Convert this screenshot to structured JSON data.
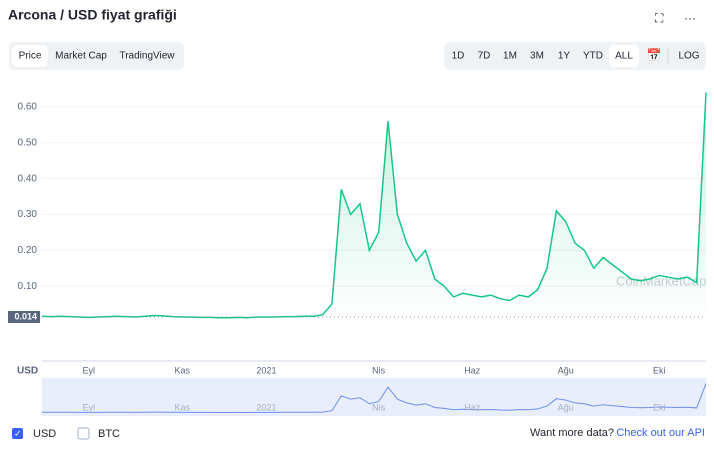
{
  "ui": {
    "title": "Arcona / USD fiyat grafiği",
    "tabs": [
      "Price",
      "Market Cap",
      "TradingView"
    ],
    "ranges": [
      "1D",
      "7D",
      "1M",
      "3M",
      "1Y",
      "YTD",
      "ALL"
    ],
    "log": "LOG",
    "axis_currency": "USD",
    "watermark": "CoinMarketCap",
    "checkboxes": [
      "USD",
      "BTC"
    ],
    "footer_text": "Want more data?",
    "footer_link": "Check out our API"
  },
  "chart_data": {
    "type": "line",
    "color": "#16c784",
    "categories": [
      null,
      null,
      null,
      null,
      null,
      "Eyl",
      null,
      null,
      null,
      null,
      null,
      null,
      null,
      null,
      null,
      "Kas",
      null,
      null,
      null,
      null,
      null,
      null,
      null,
      null,
      "2021",
      null,
      null,
      null,
      null,
      null,
      null,
      null,
      null,
      null,
      null,
      null,
      "Nis",
      null,
      null,
      null,
      null,
      null,
      null,
      null,
      null,
      null,
      "Haz",
      null,
      null,
      null,
      null,
      null,
      null,
      null,
      null,
      null,
      "Ağu",
      null,
      null,
      null,
      null,
      null,
      null,
      null,
      null,
      null,
      "Eki",
      null,
      null,
      null,
      null,
      null
    ],
    "values": [
      0.016,
      0.015,
      0.016,
      0.015,
      0.014,
      0.013,
      0.014,
      0.015,
      0.016,
      0.015,
      0.014,
      0.016,
      0.018,
      0.017,
      0.015,
      0.014,
      0.014,
      0.013,
      0.013,
      0.012,
      0.012,
      0.013,
      0.012,
      0.014,
      0.014,
      0.014,
      0.015,
      0.015,
      0.016,
      0.016,
      0.02,
      0.05,
      0.37,
      0.3,
      0.33,
      0.2,
      0.25,
      0.56,
      0.3,
      0.22,
      0.17,
      0.2,
      0.12,
      0.1,
      0.07,
      0.08,
      0.075,
      0.07,
      0.075,
      0.065,
      0.06,
      0.075,
      0.07,
      0.09,
      0.15,
      0.31,
      0.28,
      0.22,
      0.2,
      0.15,
      0.18,
      0.16,
      0.14,
      0.12,
      0.115,
      0.12,
      0.13,
      0.125,
      0.12,
      0.125,
      0.11,
      0.64
    ],
    "ylim": [
      0,
      0.65
    ],
    "yticks": [
      {
        "value": 0.1,
        "label": "0.10"
      },
      {
        "value": 0.2,
        "label": "0.20"
      },
      {
        "value": 0.3,
        "label": "0.30"
      },
      {
        "value": 0.4,
        "label": "0.40"
      },
      {
        "value": 0.5,
        "label": "0.50"
      },
      {
        "value": 0.6,
        "label": "0.60"
      }
    ],
    "reference": {
      "value": 0.014,
      "label": "0.014"
    },
    "grid": true
  }
}
